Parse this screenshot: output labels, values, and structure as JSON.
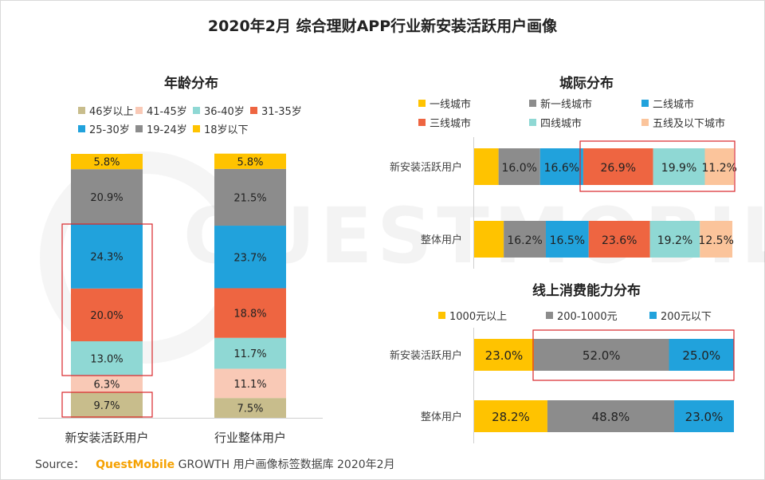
{
  "title": "2020年2月 综合理财APP行业新安装活跃用户画像",
  "watermark": "QUESTMOBILE",
  "source": {
    "label": "Source：",
    "brand": "QuestMobile",
    "text": "GROWTH 用户画像标签数据库 2020年2月"
  },
  "chart_data": [
    {
      "type": "bar",
      "stacked": true,
      "orientation": "vertical",
      "title": "年龄分布",
      "categories": [
        "新安装活跃用户",
        "行业整体用户"
      ],
      "series": [
        {
          "name": "46岁以上",
          "color": "#c8bd8c",
          "values": [
            9.7,
            7.5
          ],
          "labels": [
            "9.7%",
            "7.5%"
          ]
        },
        {
          "name": "41-45岁",
          "color": "#f9c9b6",
          "values": [
            6.3,
            11.1
          ],
          "labels": [
            "6.3%",
            "11.1%"
          ]
        },
        {
          "name": "36-40岁",
          "color": "#8fd8d4",
          "values": [
            13.0,
            11.7
          ],
          "labels": [
            "13.0%",
            "11.7%"
          ]
        },
        {
          "name": "31-35岁",
          "color": "#ee6541",
          "values": [
            20.0,
            18.8
          ],
          "labels": [
            "20.0%",
            "18.8%"
          ]
        },
        {
          "name": "25-30岁",
          "color": "#21a2dc",
          "values": [
            24.3,
            23.7
          ],
          "labels": [
            "24.3%",
            "23.7%"
          ]
        },
        {
          "name": "19-24岁",
          "color": "#8c8c8c",
          "values": [
            20.9,
            21.5
          ],
          "labels": [
            "20.9%",
            "21.5%"
          ]
        },
        {
          "name": "18岁以下",
          "color": "#ffc300",
          "values": [
            5.8,
            5.8
          ],
          "labels": [
            "5.8%",
            "5.8%"
          ]
        }
      ],
      "ylim": [
        0,
        100
      ]
    },
    {
      "type": "bar",
      "stacked": true,
      "orientation": "horizontal",
      "title": "城际分布",
      "categories": [
        "新安装活跃用户",
        "整体用户"
      ],
      "series": [
        {
          "name": "一线城市",
          "color": "#ffc300",
          "values": [
            9.4,
            11.4
          ],
          "labels": [
            "",
            ""
          ]
        },
        {
          "name": "新一线城市",
          "color": "#8c8c8c",
          "values": [
            16.0,
            16.2
          ],
          "labels": [
            "16.0%",
            "16.2%"
          ]
        },
        {
          "name": "二线城市",
          "color": "#21a2dc",
          "values": [
            16.6,
            16.5
          ],
          "labels": [
            "16.6%",
            "16.5%"
          ]
        },
        {
          "name": "三线城市",
          "color": "#ee6541",
          "values": [
            26.9,
            23.6
          ],
          "labels": [
            "26.9%",
            "23.6%"
          ]
        },
        {
          "name": "四线城市",
          "color": "#8fd8d4",
          "values": [
            19.9,
            19.2
          ],
          "labels": [
            "19.9%",
            "19.2%"
          ]
        },
        {
          "name": "五线及以下城市",
          "color": "#fbc49b",
          "values": [
            11.2,
            12.5
          ],
          "labels": [
            "11.2%",
            "12.5%"
          ]
        }
      ],
      "xlim": [
        0,
        100
      ]
    },
    {
      "type": "bar",
      "stacked": true,
      "orientation": "horizontal",
      "title": "线上消费能力分布",
      "categories": [
        "新安装活跃用户",
        "整体用户"
      ],
      "series": [
        {
          "name": "1000元以上",
          "color": "#ffc300",
          "values": [
            23.0,
            28.2
          ],
          "labels": [
            "23.0%",
            "28.2%"
          ]
        },
        {
          "name": "200-1000元",
          "color": "#8c8c8c",
          "values": [
            52.0,
            48.8
          ],
          "labels": [
            "52.0%",
            "48.8%"
          ]
        },
        {
          "name": "200元以下",
          "color": "#21a2dc",
          "values": [
            25.0,
            23.0
          ],
          "labels": [
            "25.0%",
            "23.0%"
          ]
        }
      ],
      "xlim": [
        0,
        100
      ]
    }
  ]
}
